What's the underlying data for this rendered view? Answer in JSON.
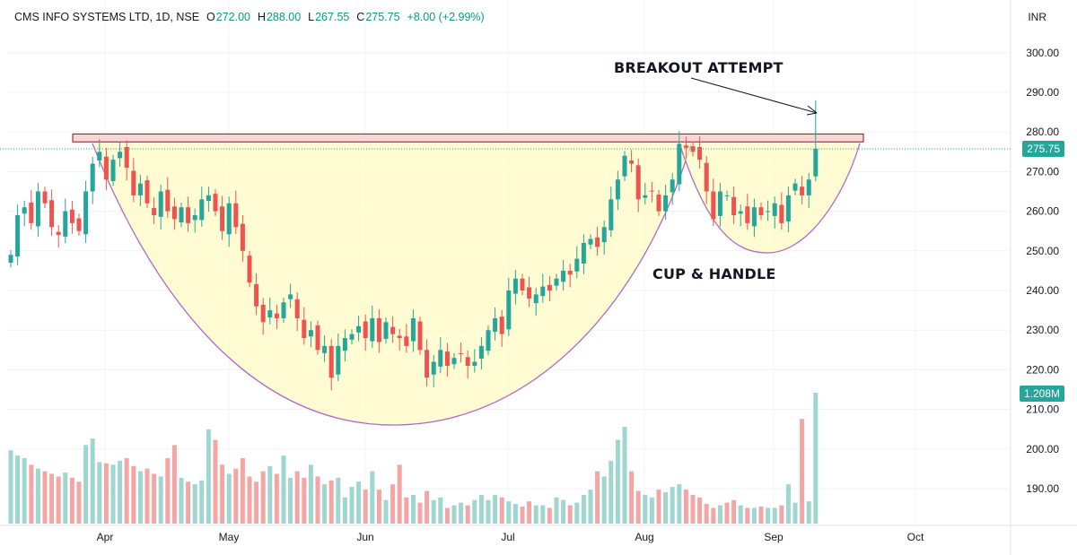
{
  "header": {
    "symbol": "CMS INFO SYSTEMS LTD, 1D, NSE",
    "o_label": "O",
    "o_value": "272.00",
    "h_label": "H",
    "h_value": "288.00",
    "l_label": "L",
    "l_value": "267.55",
    "c_label": "C",
    "c_value": "275.75",
    "change": "+8.00 (+2.99%)"
  },
  "currency": "INR",
  "price_tag": "275.75",
  "volume_tag": "1.208M",
  "annotations": {
    "breakout": "BREAKOUT ATTEMPT",
    "pattern": "CUP & HANDLE"
  },
  "colors": {
    "up": "#26a69a",
    "down": "#ef5350",
    "vol_up": "#9fd6d0",
    "vol_down": "#f4a6a4",
    "cup_fill": "#fff9c4",
    "cup_line": "#b169c9",
    "resistance": "#f8d6d6",
    "price_tag_bg": "#26a69a",
    "grid": "#f0f3fa"
  },
  "chart_data": {
    "type": "candlestick",
    "symbol": "CMS INFO SYSTEMS LTD",
    "interval": "1D",
    "exchange": "NSE",
    "ylim": [
      185,
      305
    ],
    "y_ticks": [
      300.0,
      290.0,
      280.0,
      270.0,
      260.0,
      250.0,
      240.0,
      230.0,
      220.0,
      210.0,
      200.0,
      190.0
    ],
    "x_ticks": [
      "Apr",
      "May",
      "Jun",
      "Jul",
      "Aug",
      "Sep",
      "Oct"
    ],
    "last_close": 275.75,
    "last_volume": "1.208M",
    "resistance_zone": [
      277.5,
      279.5
    ],
    "closes": [
      249,
      259,
      261,
      257,
      265,
      262,
      256,
      254,
      260,
      257,
      255,
      265,
      272,
      275,
      268,
      273,
      275,
      271,
      264,
      267,
      262,
      259,
      265,
      260,
      258,
      261,
      257,
      259,
      263,
      264,
      260,
      255,
      262,
      256,
      250,
      242,
      236,
      232,
      235,
      233,
      237,
      239,
      233,
      228,
      230,
      225,
      226,
      218,
      226,
      228,
      229,
      231,
      228,
      233,
      227,
      232,
      229,
      228,
      226,
      233,
      225,
      218,
      222,
      225,
      221,
      223,
      224,
      221,
      222,
      226,
      230,
      233,
      229,
      240,
      243,
      240,
      238,
      239,
      241,
      240,
      243,
      245,
      244,
      248,
      252,
      253,
      251,
      256,
      263,
      268,
      274,
      272,
      263,
      264,
      265,
      260,
      264,
      268,
      277,
      276,
      275,
      273,
      265,
      258,
      265,
      264,
      259,
      260,
      257,
      261,
      259,
      260,
      262,
      257,
      264,
      267,
      264,
      268,
      275.75
    ],
    "volume_relative": [
      0.56,
      0.52,
      0.5,
      0.45,
      0.42,
      0.4,
      0.38,
      0.36,
      0.39,
      0.35,
      0.32,
      0.6,
      0.65,
      0.47,
      0.46,
      0.45,
      0.48,
      0.5,
      0.44,
      0.4,
      0.42,
      0.38,
      0.36,
      0.5,
      0.6,
      0.35,
      0.32,
      0.3,
      0.33,
      0.72,
      0.64,
      0.45,
      0.38,
      0.42,
      0.5,
      0.36,
      0.32,
      0.4,
      0.44,
      0.38,
      0.52,
      0.35,
      0.4,
      0.35,
      0.45,
      0.36,
      0.3,
      0.33,
      0.35,
      0.2,
      0.28,
      0.32,
      0.26,
      0.4,
      0.26,
      0.18,
      0.3,
      0.45,
      0.2,
      0.22,
      0.16,
      0.25,
      0.18,
      0.2,
      0.12,
      0.14,
      0.16,
      0.14,
      0.18,
      0.22,
      0.18,
      0.22,
      0.2,
      0.17,
      0.15,
      0.13,
      0.17,
      0.14,
      0.14,
      0.12,
      0.2,
      0.18,
      0.14,
      0.16,
      0.22,
      0.26,
      0.4,
      0.36,
      0.48,
      0.64,
      0.74,
      0.4,
      0.25,
      0.22,
      0.2,
      0.26,
      0.24,
      0.28,
      0.3,
      0.26,
      0.22,
      0.2,
      0.15,
      0.12,
      0.14,
      0.16,
      0.18,
      0.14,
      0.12,
      0.12,
      0.13,
      0.12,
      0.12,
      0.14,
      0.3,
      0.16,
      0.8,
      0.17,
      1.0
    ]
  }
}
